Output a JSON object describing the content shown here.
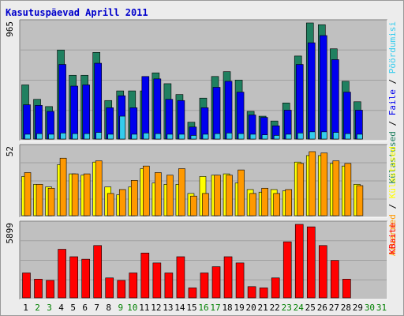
{
  "title": "Kasutuspäevad Aprill 2011",
  "colors": {
    "frame_bg": "#ececec",
    "panel_bg": "#c0c0c0",
    "title": "#0000cc",
    "weekday_label": "#000000",
    "weekend_label": "#008000",
    "visits": "#208060",
    "pages": "#0000ee",
    "files": "#33ccee",
    "hits": "#ff9900",
    "kbytes": "#ff0000"
  },
  "chart_data": {
    "type": "bar",
    "title": "Kasutuspäevad Aprill 2011",
    "categories": [
      "1",
      "2",
      "3",
      "4",
      "5",
      "6",
      "7",
      "8",
      "9",
      "10",
      "11",
      "12",
      "13",
      "14",
      "15",
      "16",
      "17",
      "18",
      "19",
      "20",
      "21",
      "22",
      "23",
      "24",
      "25",
      "26",
      "27",
      "28",
      "29",
      "30",
      "31"
    ],
    "weekend_days": [
      "2",
      "3",
      "9",
      "10",
      "16",
      "17",
      "23",
      "24",
      "30",
      "31"
    ],
    "panels": [
      {
        "id": "top",
        "max_label": "965",
        "ymax": 965,
        "legend_parts": [
          {
            "text": "Külastused",
            "color": "#208060"
          },
          {
            "text": " / ",
            "color": "#000000"
          },
          {
            "text": "Faile",
            "color": "#0000ee"
          },
          {
            "text": " / ",
            "color": "#000000"
          },
          {
            "text": "Pöördumisi",
            "color": "#33ccee"
          }
        ],
        "series": [
          {
            "name": "Külastused",
            "color": "#208060",
            "values": [
              450,
              330,
              270,
              740,
              530,
              530,
              720,
              320,
              400,
              400,
              400,
              550,
              460,
              370,
              140,
              340,
              520,
              560,
              490,
              230,
              190,
              150,
              300,
              690,
              965,
              950,
              750,
              480,
              310,
              0,
              0
            ]
          },
          {
            "name": "Faile",
            "color": "#0000ee",
            "values": [
              285,
              280,
              230,
              620,
              440,
              450,
              630,
              260,
              360,
              260,
              520,
              500,
              330,
              320,
              100,
              260,
              430,
              480,
              390,
              200,
              180,
              110,
              240,
              620,
              800,
              860,
              660,
              390,
              240,
              0,
              0
            ]
          },
          {
            "name": "Pöördumisi",
            "color": "#33ccee",
            "values": [
              40,
              45,
              40,
              50,
              45,
              45,
              55,
              40,
              190,
              40,
              50,
              45,
              40,
              40,
              30,
              40,
              45,
              50,
              45,
              40,
              35,
              30,
              40,
              50,
              60,
              60,
              55,
              45,
              40,
              0,
              0
            ]
          }
        ]
      },
      {
        "id": "mid",
        "max_label": "52",
        "ymax": 52,
        "legend_parts": [
          {
            "text": "Aruanded",
            "color": "#ff9900"
          },
          {
            "text": " / ",
            "color": "#000000"
          },
          {
            "text": "Külastused",
            "color": "#ffff00"
          }
        ],
        "series": [
          {
            "name": "Külastused",
            "color": "#ffff00",
            "values": [
              30,
              24,
              22,
              39,
              32,
              31,
              41,
              22,
              16,
              22,
              36,
              25,
              24,
              24,
              17,
              30,
              31,
              32,
              25,
              20,
              18,
              20,
              19,
              41,
              46,
              46,
              40,
              38,
              24,
              0,
              0
            ]
          },
          {
            "name": "Aruanded",
            "color": "#ff9900",
            "values": [
              33,
              24,
              21,
              44,
              32,
              32,
              42,
              17,
              20,
              27,
              38,
              33,
              31,
              36,
              15,
              17,
              31,
              31,
              35,
              17,
              21,
              17,
              20,
              40,
              49,
              48,
              42,
              40,
              23,
              0,
              0
            ]
          }
        ]
      },
      {
        "id": "bot",
        "max_label": "5899",
        "ymax": 5899,
        "legend_parts": [
          {
            "text": "KBaite",
            "color": "#ff0000"
          }
        ],
        "series": [
          {
            "name": "KBaite",
            "color": "#ff0000",
            "values": [
              2000,
              1500,
              1400,
              3900,
              3300,
              3100,
              4200,
              1600,
              1400,
              2000,
              3600,
              2800,
              2000,
              3300,
              800,
              2000,
              2500,
              3300,
              2800,
              900,
              800,
              1600,
              4500,
              5899,
              5700,
              4200,
              3000,
              1500,
              0,
              0,
              0
            ]
          }
        ]
      }
    ]
  }
}
